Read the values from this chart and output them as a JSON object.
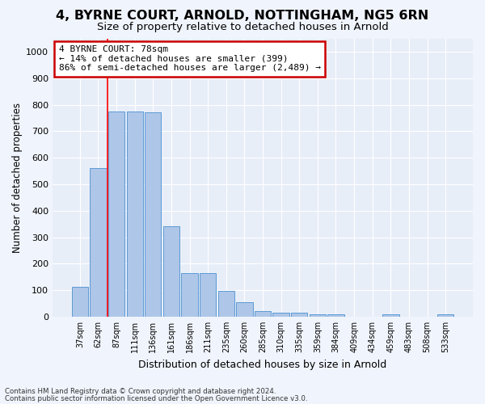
{
  "title1": "4, BYRNE COURT, ARNOLD, NOTTINGHAM, NG5 6RN",
  "title2": "Size of property relative to detached houses in Arnold",
  "xlabel": "Distribution of detached houses by size in Arnold",
  "ylabel": "Number of detached properties",
  "categories": [
    "37sqm",
    "62sqm",
    "87sqm",
    "111sqm",
    "136sqm",
    "161sqm",
    "186sqm",
    "211sqm",
    "235sqm",
    "260sqm",
    "285sqm",
    "310sqm",
    "335sqm",
    "359sqm",
    "384sqm",
    "409sqm",
    "434sqm",
    "459sqm",
    "483sqm",
    "508sqm",
    "533sqm"
  ],
  "values": [
    112,
    560,
    775,
    775,
    770,
    342,
    165,
    165,
    97,
    55,
    20,
    15,
    15,
    10,
    10,
    0,
    0,
    8,
    0,
    0,
    8
  ],
  "bar_color": "#aec6e8",
  "bar_edgecolor": "#5b9bd5",
  "background_color": "#e8eef8",
  "grid_color": "#ffffff",
  "redline_index": 2,
  "annotation_text_line1": "4 BYRNE COURT: 78sqm",
  "annotation_text_line2": "← 14% of detached houses are smaller (399)",
  "annotation_text_line3": "86% of semi-detached houses are larger (2,489) →",
  "annotation_box_color": "#ffffff",
  "annotation_box_edgecolor": "#cc0000",
  "ylim": [
    0,
    1050
  ],
  "yticks": [
    0,
    100,
    200,
    300,
    400,
    500,
    600,
    700,
    800,
    900,
    1000
  ],
  "footer1": "Contains HM Land Registry data © Crown copyright and database right 2024.",
  "footer2": "Contains public sector information licensed under the Open Government Licence v3.0.",
  "title1_fontsize": 11.5,
  "title2_fontsize": 9.5,
  "xlabel_fontsize": 9,
  "ylabel_fontsize": 8.5,
  "fig_background": "#f0f4fc"
}
